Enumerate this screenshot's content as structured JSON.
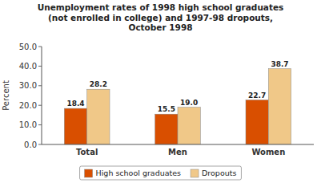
{
  "chart_data": {
    "type": "bar",
    "title": "Unemployment rates of 1998 high school graduates\n(not enrolled in college) and 1997-98 dropouts,\nOctober 1998",
    "categories": [
      "Total",
      "Men",
      "Women"
    ],
    "series": [
      {
        "name": "High school graduates",
        "color": "#d94f00",
        "values": [
          18.4,
          15.5,
          22.7
        ]
      },
      {
        "name": "Dropouts",
        "color": "#f0c888",
        "values": [
          28.2,
          19.0,
          38.7
        ],
        "value_labels": [
          "28.2",
          "19.0",
          "38.7"
        ]
      }
    ],
    "ylabel": "Percent",
    "ylim": [
      0,
      50
    ],
    "yticks": [
      {
        "value": 0,
        "label": "0.0"
      },
      {
        "value": 10,
        "label": "10.0"
      },
      {
        "value": 20,
        "label": "20.0"
      },
      {
        "value": 30,
        "label": "30.0"
      },
      {
        "value": 40,
        "label": "40.0"
      },
      {
        "value": 50,
        "label": "50.0"
      }
    ],
    "data_labels": true,
    "grid": false,
    "legend": "bottom"
  }
}
